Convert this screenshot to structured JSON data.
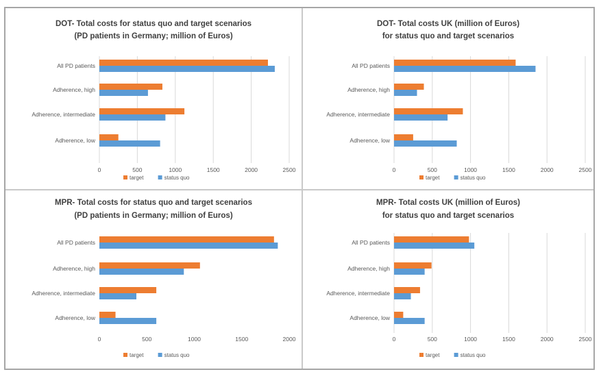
{
  "colors": {
    "target": "#ed7d31",
    "status_quo": "#5b9bd5",
    "grid": "#d9d9d9"
  },
  "chart_data": [
    {
      "type": "bar",
      "orientation": "horizontal",
      "title_lines": [
        "DOT- Total costs for status quo and target scenarios",
        "(PD patients in Germany; million of Euros)"
      ],
      "categories": [
        "All PD patients",
        "Adherence, high",
        "Adherence, intermediate",
        "Adherence, low"
      ],
      "series": [
        {
          "name": "target",
          "values": [
            2220,
            830,
            1120,
            250
          ]
        },
        {
          "name": "status quo",
          "values": [
            2310,
            640,
            870,
            800
          ]
        }
      ],
      "xlim": [
        0,
        2500
      ],
      "xticks": [
        "0",
        "500",
        "1000",
        "1500",
        "2000",
        "2500"
      ],
      "grid": true,
      "legend_position": "bottom"
    },
    {
      "type": "bar",
      "orientation": "horizontal",
      "title_lines": [
        "DOT- Total costs UK (million of Euros)",
        "for status quo and target scenarios"
      ],
      "categories": [
        "All PD patients",
        "Adherence, high",
        "Adherence, intermediate",
        "Adherence, low"
      ],
      "series": [
        {
          "name": "target",
          "values": [
            1590,
            390,
            900,
            250
          ]
        },
        {
          "name": "status quo",
          "values": [
            1850,
            300,
            700,
            820
          ]
        }
      ],
      "xlim": [
        0,
        2500
      ],
      "xticks": [
        "0",
        "500",
        "1000",
        "1500",
        "2000",
        "2500"
      ],
      "grid": true,
      "legend_position": "bottom"
    },
    {
      "type": "bar",
      "orientation": "horizontal",
      "title_lines": [
        "MPR- Total costs for status quo and target scenarios",
        "(PD patients in Germany; million of Euros)"
      ],
      "categories": [
        "All PD patients",
        "Adherence, high",
        "Adherence, intermediate",
        "Adherence, low"
      ],
      "series": [
        {
          "name": "target",
          "values": [
            1840,
            1060,
            600,
            170
          ]
        },
        {
          "name": "status quo",
          "values": [
            1880,
            890,
            390,
            600
          ]
        }
      ],
      "xlim": [
        0,
        2000
      ],
      "xticks": [
        "0",
        "500",
        "1000",
        "1500",
        "2000"
      ],
      "grid": false,
      "legend_position": "bottom"
    },
    {
      "type": "bar",
      "orientation": "horizontal",
      "title_lines": [
        "MPR- Total costs UK (million of Euros)",
        "for status quo and target scenarios"
      ],
      "categories": [
        "All PD patients",
        "Adherence, high",
        "Adherence, intermediate",
        "Adherence, low"
      ],
      "series": [
        {
          "name": "target",
          "values": [
            980,
            490,
            340,
            120
          ]
        },
        {
          "name": "status quo",
          "values": [
            1050,
            400,
            220,
            400
          ]
        }
      ],
      "xlim": [
        0,
        2500
      ],
      "xticks": [
        "0",
        "500",
        "1000",
        "1500",
        "2000",
        "2500"
      ],
      "grid": true,
      "legend_position": "bottom"
    }
  ]
}
